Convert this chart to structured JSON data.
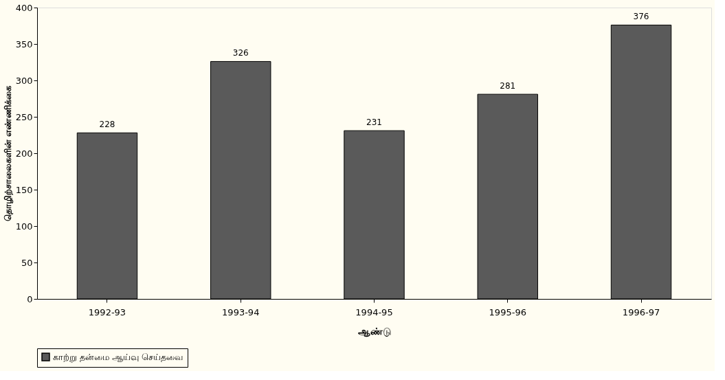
{
  "chart_data": {
    "type": "bar",
    "xlabel": "ஆண்டு",
    "ylabel": "தொழிற்சாலைகளின் எண்ணிக்கை",
    "categories": [
      "1992-93",
      "1993-94",
      "1994-95",
      "1995-96",
      "1996-97"
    ],
    "series": [
      {
        "name": "காற்று தன்மை ஆய்வு செய்தவை",
        "color": "#5a5a5a",
        "values": [
          228,
          326,
          231,
          281,
          376
        ]
      }
    ],
    "ylim": [
      0,
      400
    ],
    "yticks": [
      0,
      50,
      100,
      150,
      200,
      250,
      300,
      350,
      400
    ],
    "data_labels": true,
    "grid": false,
    "legend": "bottom"
  }
}
